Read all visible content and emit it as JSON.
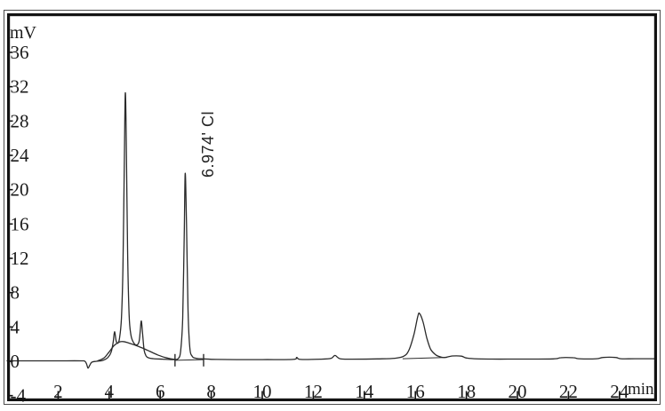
{
  "window": {
    "background": "#ffffff",
    "frame_color": "#131313",
    "outer_line_color": "#4d4d4d",
    "trace_color": "#2a2a2a",
    "text_color": "#1b1b1b"
  },
  "chart_data": {
    "type": "line",
    "title": "",
    "ylabel": "mV",
    "xlabel": "min",
    "grid": false,
    "legend": "none",
    "xlim": [
      0,
      25.47
    ],
    "ylim": [
      -4.55,
      40.55
    ],
    "x_ticks": [
      2,
      4,
      6,
      8,
      10,
      12,
      14,
      16,
      18,
      20,
      22,
      24
    ],
    "y_ticks": [
      36,
      32,
      28,
      24,
      20,
      16,
      12,
      8,
      4,
      0,
      -4
    ],
    "peak_annotation": {
      "text": "6.974'  Cl",
      "retention_time_min": 6.974,
      "analyte": "Cl",
      "peak_height_mV": 21.9
    },
    "peaks": [
      {
        "t_min": 4.21,
        "height_mV": 3.45
      },
      {
        "t_min": 4.63,
        "height_mV": 31.2
      },
      {
        "t_min": 5.26,
        "height_mV": 4.7
      },
      {
        "t_min": 6.974,
        "height_mV": 21.9,
        "label": "Cl"
      },
      {
        "t_min": 16.17,
        "height_mV": 5.55
      }
    ],
    "baseline_dip": {
      "t_min": 3.17,
      "depth_mV": -0.8
    },
    "integration_marks": [
      {
        "t": 6.58,
        "v_from": -0.6,
        "v_to": 0.85
      },
      {
        "t": 7.7,
        "v_from": -0.6,
        "v_to": 0.85
      }
    ],
    "integration_baselines": [
      [
        [
          6.58,
          0.12
        ],
        [
          7.7,
          0.2
        ]
      ],
      [
        [
          15.5,
          0.3
        ],
        [
          17.25,
          0.45
        ]
      ]
    ],
    "series": [
      {
        "name": "signal",
        "points": [
          [
            0,
            0.05
          ],
          [
            1.0,
            0.05
          ],
          [
            2.0,
            0.05
          ],
          [
            2.9,
            0.05
          ],
          [
            3.05,
            0.0
          ],
          [
            3.12,
            -0.35
          ],
          [
            3.17,
            -0.8
          ],
          [
            3.24,
            -0.45
          ],
          [
            3.32,
            -0.1
          ],
          [
            3.5,
            0.0
          ],
          [
            3.75,
            0.1
          ],
          [
            3.95,
            0.45
          ],
          [
            4.08,
            1.1
          ],
          [
            4.16,
            2.3
          ],
          [
            4.21,
            3.45
          ],
          [
            4.27,
            2.4
          ],
          [
            4.33,
            2.1
          ],
          [
            4.4,
            2.6
          ],
          [
            4.48,
            5.0
          ],
          [
            4.54,
            11.0
          ],
          [
            4.59,
            22.0
          ],
          [
            4.63,
            31.2
          ],
          [
            4.67,
            26.0
          ],
          [
            4.72,
            13.0
          ],
          [
            4.78,
            5.5
          ],
          [
            4.85,
            3.1
          ],
          [
            4.95,
            2.2
          ],
          [
            5.08,
            1.9
          ],
          [
            5.17,
            2.3
          ],
          [
            5.22,
            3.6
          ],
          [
            5.26,
            4.7
          ],
          [
            5.31,
            3.2
          ],
          [
            5.37,
            1.3
          ],
          [
            5.45,
            0.6
          ],
          [
            5.55,
            0.4
          ],
          [
            5.75,
            0.3
          ],
          [
            6.1,
            0.25
          ],
          [
            6.5,
            0.2
          ],
          [
            6.7,
            0.3
          ],
          [
            6.8,
            1.2
          ],
          [
            6.88,
            5.0
          ],
          [
            6.94,
            14.5
          ],
          [
            6.98,
            21.9
          ],
          [
            7.03,
            16.0
          ],
          [
            7.09,
            6.0
          ],
          [
            7.16,
            1.6
          ],
          [
            7.25,
            0.6
          ],
          [
            7.4,
            0.35
          ],
          [
            7.7,
            0.28
          ],
          [
            8.2,
            0.22
          ],
          [
            9.0,
            0.2
          ],
          [
            10.0,
            0.2
          ],
          [
            11.2,
            0.22
          ],
          [
            11.35,
            0.45
          ],
          [
            11.5,
            0.22
          ],
          [
            12.3,
            0.25
          ],
          [
            12.7,
            0.35
          ],
          [
            12.85,
            0.68
          ],
          [
            13.05,
            0.3
          ],
          [
            13.5,
            0.25
          ],
          [
            14.5,
            0.28
          ],
          [
            15.2,
            0.35
          ],
          [
            15.55,
            0.6
          ],
          [
            15.75,
            1.3
          ],
          [
            15.95,
            3.2
          ],
          [
            16.1,
            5.3
          ],
          [
            16.17,
            5.55
          ],
          [
            16.3,
            4.6
          ],
          [
            16.45,
            2.7
          ],
          [
            16.6,
            1.4
          ],
          [
            16.8,
            0.75
          ],
          [
            17.0,
            0.5
          ],
          [
            17.15,
            0.45
          ],
          [
            17.45,
            0.62
          ],
          [
            17.8,
            0.6
          ],
          [
            18.0,
            0.38
          ],
          [
            18.3,
            0.3
          ],
          [
            19.0,
            0.26
          ],
          [
            20.0,
            0.26
          ],
          [
            21.4,
            0.28
          ],
          [
            21.7,
            0.42
          ],
          [
            22.2,
            0.42
          ],
          [
            22.4,
            0.3
          ],
          [
            23.1,
            0.3
          ],
          [
            23.35,
            0.45
          ],
          [
            23.85,
            0.45
          ],
          [
            24.05,
            0.3
          ],
          [
            24.6,
            0.3
          ],
          [
            25.45,
            0.3
          ]
        ]
      },
      {
        "name": "secondary-signal",
        "points": [
          [
            3.55,
            0.05
          ],
          [
            3.8,
            0.4
          ],
          [
            4.0,
            1.1
          ],
          [
            4.2,
            1.85
          ],
          [
            4.4,
            2.25
          ],
          [
            4.55,
            2.3
          ],
          [
            4.75,
            2.15
          ],
          [
            5.0,
            1.9
          ],
          [
            5.3,
            1.55
          ],
          [
            5.6,
            1.15
          ],
          [
            5.9,
            0.75
          ],
          [
            6.15,
            0.48
          ],
          [
            6.4,
            0.3
          ],
          [
            6.6,
            0.22
          ]
        ]
      }
    ]
  }
}
